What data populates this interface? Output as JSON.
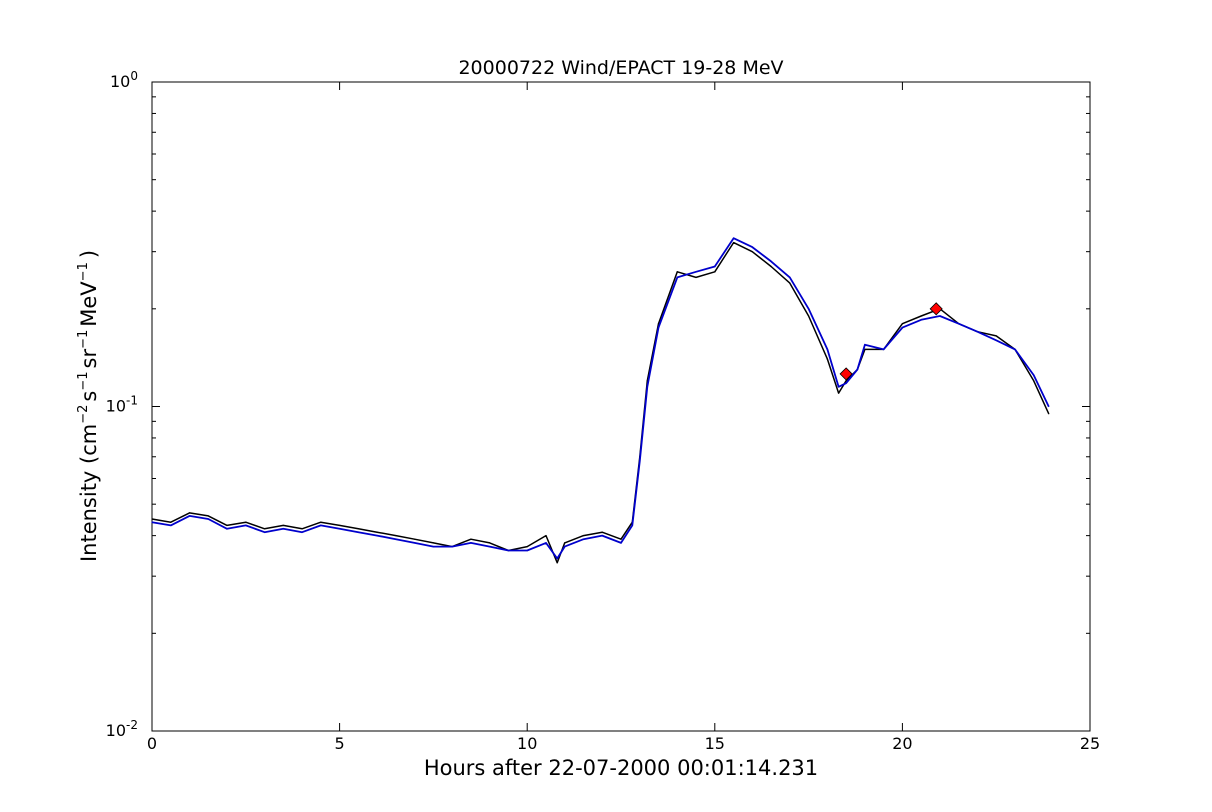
{
  "chart_data": {
    "type": "line",
    "title": "20000722 Wind/EPACT 19-28 MeV",
    "xlabel": "Hours after 22-07-2000 00:01:14.231",
    "ylabel": {
      "prefix": "Intensity (cm",
      "exp1": "−2",
      "part2": "s",
      "exp2": "−1",
      "part3": "sr",
      "exp3": "−1",
      "part4": "MeV",
      "exp4": "−1",
      "suffix": ")"
    },
    "xlim": [
      0,
      25
    ],
    "ylim": [
      0.01,
      1
    ],
    "yscale": "log",
    "grid": false,
    "x_ticks": [
      {
        "value": 0,
        "label": "0"
      },
      {
        "value": 5,
        "label": "5"
      },
      {
        "value": 10,
        "label": "10"
      },
      {
        "value": 15,
        "label": "15"
      },
      {
        "value": 20,
        "label": "20"
      },
      {
        "value": 25,
        "label": "25"
      }
    ],
    "y_ticks": [
      {
        "value": 0.01,
        "base": "10",
        "exp": "-2"
      },
      {
        "value": 0.1,
        "base": "10",
        "exp": "-1"
      },
      {
        "value": 1,
        "base": "10",
        "exp": "0"
      }
    ],
    "series": [
      {
        "color": "#000000",
        "style": "noisy raw intensity (black)",
        "x": [
          0,
          0.5,
          1,
          1.5,
          2,
          2.5,
          3,
          3.5,
          4,
          4.5,
          5,
          5.5,
          6,
          6.5,
          7,
          7.5,
          8,
          8.5,
          9,
          9.5,
          10,
          10.5,
          10.8,
          11,
          11.5,
          12,
          12.5,
          12.8,
          13,
          13.2,
          13.5,
          14,
          14.5,
          15,
          15.5,
          16,
          16.5,
          17,
          17.5,
          18,
          18.3,
          18.5,
          18.8,
          19,
          19.5,
          20,
          20.5,
          21,
          21.5,
          22,
          22.5,
          23,
          23.5,
          23.9
        ],
        "y": [
          0.045,
          0.044,
          0.047,
          0.046,
          0.043,
          0.044,
          0.042,
          0.043,
          0.042,
          0.044,
          0.043,
          0.042,
          0.041,
          0.04,
          0.039,
          0.038,
          0.037,
          0.039,
          0.038,
          0.036,
          0.037,
          0.04,
          0.033,
          0.038,
          0.04,
          0.041,
          0.039,
          0.044,
          0.07,
          0.12,
          0.18,
          0.26,
          0.25,
          0.26,
          0.32,
          0.3,
          0.27,
          0.24,
          0.19,
          0.14,
          0.11,
          0.12,
          0.13,
          0.15,
          0.15,
          0.18,
          0.19,
          0.2,
          0.18,
          0.17,
          0.165,
          0.15,
          0.12,
          0.095
        ]
      },
      {
        "color": "#0000cc",
        "style": "smoothed intensity (blue)",
        "x": [
          0,
          0.5,
          1,
          1.5,
          2,
          2.5,
          3,
          3.5,
          4,
          4.5,
          5,
          5.5,
          6,
          6.5,
          7,
          7.5,
          8,
          8.5,
          9,
          9.5,
          10,
          10.5,
          10.8,
          11,
          11.5,
          12,
          12.5,
          12.8,
          13,
          13.2,
          13.5,
          14,
          14.5,
          15,
          15.5,
          16,
          16.5,
          17,
          17.5,
          18,
          18.3,
          18.5,
          18.8,
          19,
          19.5,
          20,
          20.5,
          21,
          21.5,
          22,
          22.5,
          23,
          23.5,
          23.9
        ],
        "y": [
          0.044,
          0.043,
          0.046,
          0.045,
          0.042,
          0.043,
          0.041,
          0.042,
          0.041,
          0.043,
          0.042,
          0.041,
          0.04,
          0.039,
          0.038,
          0.037,
          0.037,
          0.038,
          0.037,
          0.036,
          0.036,
          0.038,
          0.034,
          0.037,
          0.039,
          0.04,
          0.038,
          0.043,
          0.068,
          0.115,
          0.175,
          0.25,
          0.26,
          0.27,
          0.33,
          0.31,
          0.28,
          0.25,
          0.2,
          0.15,
          0.115,
          0.118,
          0.13,
          0.155,
          0.15,
          0.175,
          0.185,
          0.19,
          0.18,
          0.17,
          0.16,
          0.15,
          0.125,
          0.1
        ]
      }
    ],
    "markers": [
      {
        "x": 18.5,
        "y": 0.126,
        "color": "#ff0000",
        "shape": "diamond"
      },
      {
        "x": 20.9,
        "y": 0.2,
        "color": "#ff0000",
        "shape": "diamond"
      }
    ]
  }
}
